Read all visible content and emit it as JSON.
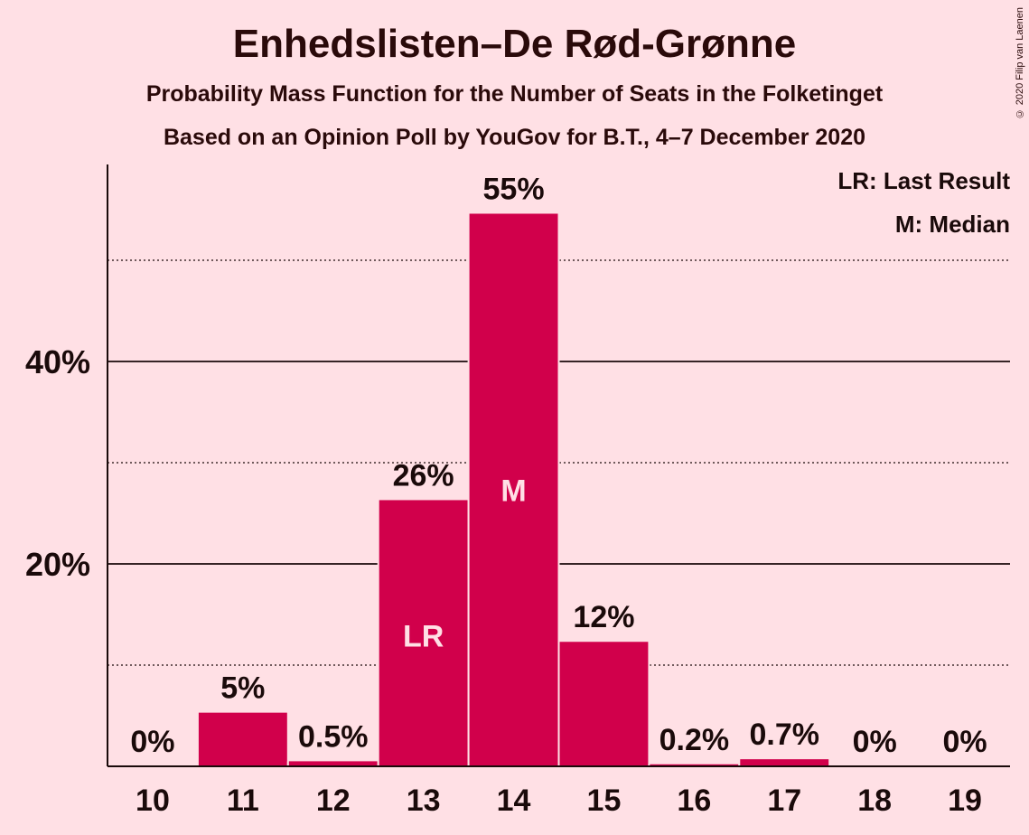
{
  "title": "Enhedslisten–De Rød-Grønne",
  "subtitle1": "Probability Mass Function for the Number of Seats in the Folketinget",
  "subtitle2": "Based on an Opinion Poll by YouGov for B.T., 4–7 December 2020",
  "copyright": "© 2020 Filip van Laenen",
  "legend": {
    "last_result": "LR: Last Result",
    "median": "M: Median"
  },
  "colors": {
    "bar": "#D1004B",
    "background": "#FFE0E5",
    "text": "#1a0a0a"
  },
  "chart_data": {
    "type": "bar",
    "categories": [
      "10",
      "11",
      "12",
      "13",
      "14",
      "15",
      "16",
      "17",
      "18",
      "19"
    ],
    "values": [
      0,
      5.3,
      0.5,
      26.3,
      54.6,
      12.3,
      0.2,
      0.7,
      0,
      0
    ],
    "value_labels": [
      "0%",
      "5%",
      "0.5%",
      "26%",
      "55%",
      "12%",
      "0.2%",
      "0.7%",
      "0%",
      "0%"
    ],
    "bar_markers": {
      "13": "LR",
      "14": "M"
    },
    "yticks": [
      20,
      40
    ],
    "ytick_labels": [
      "20%",
      "40%"
    ],
    "minor_gridlines": [
      10,
      30,
      50
    ],
    "ylim": [
      0,
      59.5
    ],
    "xlabel": "",
    "ylabel": "",
    "legend_position": "top-right",
    "grid": true
  }
}
